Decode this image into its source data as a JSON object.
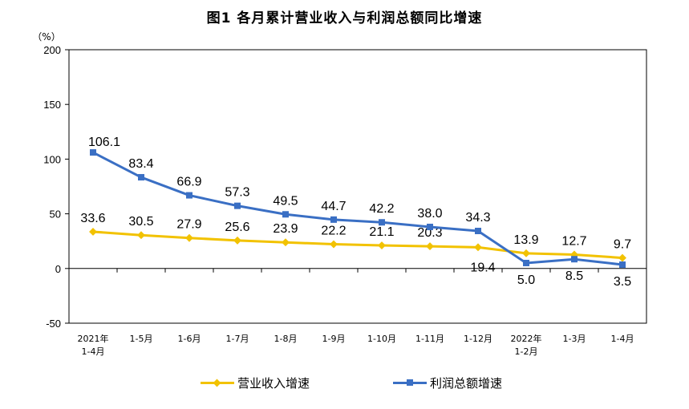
{
  "chart_data": {
    "type": "line",
    "title": "图1  各月累计营业收入与利润总额同比增速",
    "ylabel": "（%）",
    "ylim": [
      -50,
      200
    ],
    "yticks": [
      -50,
      0,
      50,
      100,
      150,
      200
    ],
    "grid": false,
    "legend_position": "bottom",
    "categories": [
      [
        "2021年",
        "1-4月"
      ],
      [
        "1-5月"
      ],
      [
        "1-6月"
      ],
      [
        "1-7月"
      ],
      [
        "1-8月"
      ],
      [
        "1-9月"
      ],
      [
        "1-10月"
      ],
      [
        "1-11月"
      ],
      [
        "1-12月"
      ],
      [
        "2022年",
        "1-2月"
      ],
      [
        "1-3月"
      ],
      [
        "1-4月"
      ]
    ],
    "series": [
      {
        "name": "营业收入增速",
        "color": "#F2C200",
        "marker": "diamond",
        "values": [
          33.6,
          30.5,
          27.9,
          25.6,
          23.9,
          22.2,
          21.1,
          20.3,
          19.4,
          13.9,
          12.7,
          9.7
        ],
        "labels": [
          "33.6",
          "30.5",
          "27.9",
          "25.6",
          "23.9",
          "22.2",
          "21.1",
          "20.3",
          "19.4",
          "13.9",
          "12.7",
          "9.7"
        ]
      },
      {
        "name": "利润总额增速",
        "color": "#3A6FC4",
        "marker": "square",
        "values": [
          106.1,
          83.4,
          66.9,
          57.3,
          49.5,
          44.7,
          42.2,
          38.0,
          34.3,
          5.0,
          8.5,
          3.5
        ],
        "labels": [
          "106.1",
          "83.4",
          "66.9",
          "57.3",
          "49.5",
          "44.7",
          "42.2",
          "38.0",
          "34.3",
          "5.0",
          "8.5",
          "3.5"
        ]
      }
    ]
  }
}
